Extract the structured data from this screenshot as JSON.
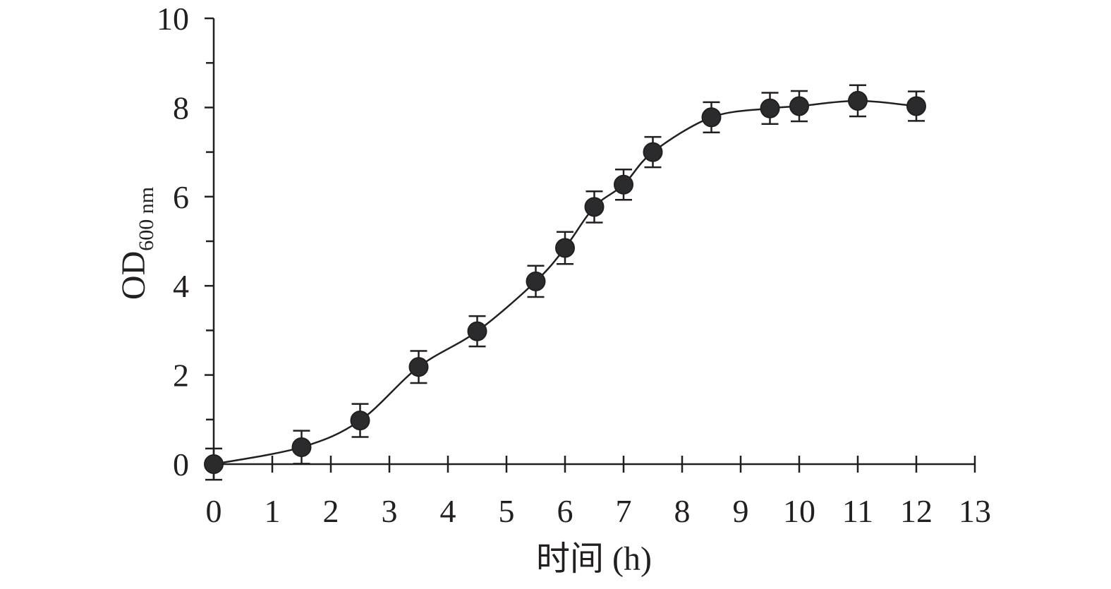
{
  "chart_data": {
    "type": "line",
    "xlabel": "时间 (h)",
    "ylabel": "OD",
    "ylabel_sub": "600 nm",
    "x": [
      0,
      1.5,
      2.5,
      3.5,
      4.5,
      5.5,
      6,
      6.5,
      7,
      7.5,
      8.5,
      9.5,
      10,
      11,
      12
    ],
    "series": [
      {
        "color": "#2b2b2e",
        "values": [
          0,
          0.38,
          0.98,
          2.18,
          2.98,
          4.1,
          4.85,
          5.77,
          6.27,
          7.0,
          7.78,
          7.98,
          8.03,
          8.15,
          8.03
        ],
        "errors": [
          0.35,
          0.37,
          0.37,
          0.36,
          0.34,
          0.35,
          0.36,
          0.35,
          0.34,
          0.34,
          0.34,
          0.35,
          0.34,
          0.35,
          0.33
        ]
      }
    ],
    "xlim": [
      0,
      13
    ],
    "xticks": [
      0,
      1,
      2,
      3,
      4,
      5,
      6,
      7,
      8,
      9,
      10,
      11,
      12,
      13
    ],
    "ylim": [
      0,
      10
    ],
    "yticks": [
      0,
      2,
      4,
      6,
      8,
      10
    ],
    "yminorticks": [
      1,
      3,
      5,
      7,
      9
    ]
  }
}
